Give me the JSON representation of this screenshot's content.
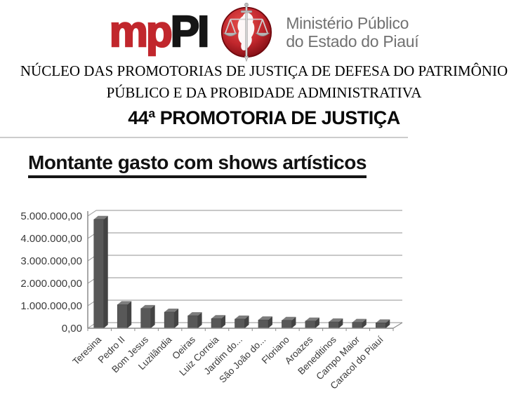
{
  "header": {
    "logo": {
      "mp": "mp",
      "pi": "PI",
      "org_line1": "Ministério Público",
      "org_line2": "do Estado do Piauí",
      "mp_color": "#c1272d",
      "pi_color": "#151515",
      "org_color": "#717171",
      "emblem": "red-sphere-with-scales-of-justice-sword-and-piaui-map"
    },
    "nucleo_line1": "NÚCLEO DAS PROMOTORIAS DE JUSTIÇA DE DEFESA DO PATRIMÔNIO",
    "nucleo_line2": "PÚBLICO E DA PROBIDADE ADMINISTRATIVA",
    "promotoria": "44ª PROMOTORIA DE JUSTIÇA"
  },
  "chart_data": {
    "type": "bar",
    "style": "3d",
    "title": "Montante gasto com shows artísticos",
    "xlabel": "",
    "ylabel": "",
    "legend": "none",
    "grid": true,
    "categories": [
      "Teresina",
      "Pedro II",
      "Bom Jesus",
      "Luzilândia",
      "Oeiras",
      "Luiz Correia",
      "Jardim do...",
      "São João do...",
      "Floriano",
      "Aroazes",
      "Beneditinos",
      "Campo Maior",
      "Caracol do Piauí"
    ],
    "values": [
      4850000,
      1050000,
      880000,
      720000,
      560000,
      430000,
      410000,
      370000,
      350000,
      320000,
      280000,
      260000,
      240000
    ],
    "ylim": [
      0,
      5000000
    ],
    "ytick_values": [
      0,
      1000000,
      2000000,
      3000000,
      4000000,
      5000000
    ],
    "ytick_labels": [
      "0,00",
      "1.000.000,00",
      "2.000.000,00",
      "3.000.000,00",
      "4.000.000,00",
      "5.000.000,00"
    ],
    "bar_color": "#585858",
    "bar_top_color": "#7d7d7d",
    "bar_side_color": "#434343",
    "axis_color": "#8c8c8c",
    "grid_color": "#a6a6a6",
    "label_color": "#3a3a3a"
  }
}
